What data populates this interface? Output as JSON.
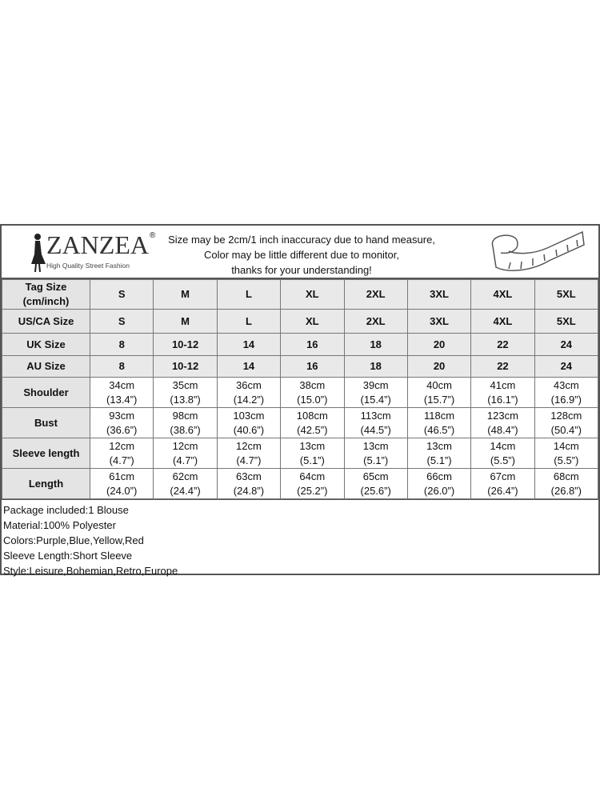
{
  "header": {
    "brand": "ZANZEA",
    "brand_mark": "®",
    "tagline": "High Quality Street Fashion",
    "notice": [
      "Size may be 2cm/1 inch inaccuracy due to hand measure,",
      "Color may be little different due to monitor,",
      "thanks for your understanding!"
    ]
  },
  "size_rows": [
    {
      "label": "Tag Size (cm/inch)",
      "values": [
        "S",
        "M",
        "L",
        "XL",
        "2XL",
        "3XL",
        "4XL",
        "5XL"
      ]
    },
    {
      "label": "US/CA Size",
      "values": [
        "S",
        "M",
        "L",
        "XL",
        "2XL",
        "3XL",
        "4XL",
        "5XL"
      ]
    },
    {
      "label": "UK Size",
      "values": [
        "8",
        "10-12",
        "14",
        "16",
        "18",
        "20",
        "22",
        "24"
      ]
    },
    {
      "label": "AU Size",
      "values": [
        "8",
        "10-12",
        "14",
        "16",
        "18",
        "20",
        "22",
        "24"
      ]
    }
  ],
  "measure_rows": [
    {
      "label": "Shoulder",
      "cm": [
        "34cm",
        "35cm",
        "36cm",
        "38cm",
        "39cm",
        "40cm",
        "41cm",
        "43cm"
      ],
      "inch": [
        "(13.4”)",
        "(13.8”)",
        "(14.2”)",
        "(15.0”)",
        "(15.4”)",
        "(15.7”)",
        "(16.1”)",
        "(16.9”)"
      ]
    },
    {
      "label": "Bust",
      "cm": [
        "93cm",
        "98cm",
        "103cm",
        "108cm",
        "113cm",
        "118cm",
        "123cm",
        "128cm"
      ],
      "inch": [
        "(36.6”)",
        "(38.6”)",
        "(40.6”)",
        "(42.5”)",
        "(44.5”)",
        "(46.5”)",
        "(48.4”)",
        "(50.4”)"
      ]
    },
    {
      "label": "Sleeve length",
      "cm": [
        "12cm",
        "12cm",
        "12cm",
        "13cm",
        "13cm",
        "13cm",
        "14cm",
        "14cm"
      ],
      "inch": [
        "(4.7”)",
        "(4.7”)",
        "(4.7”)",
        "(5.1”)",
        "(5.1”)",
        "(5.1”)",
        "(5.5”)",
        "(5.5”)"
      ]
    },
    {
      "label": "Length",
      "cm": [
        "61cm",
        "62cm",
        "63cm",
        "64cm",
        "65cm",
        "66cm",
        "67cm",
        "68cm"
      ],
      "inch": [
        "(24.0”)",
        "(24.4”)",
        "(24.8”)",
        "(25.2”)",
        "(25.6”)",
        "(26.0”)",
        "(26.4”)",
        "(26.8”)"
      ]
    }
  ],
  "footer": [
    "Package included:1 Blouse",
    "Material:100% Polyester",
    "Colors:Purple,Blue,Yellow,Red",
    "Sleeve Length:Short Sleeve",
    "Style:Leisure,Bohemian,Retro,Europe"
  ]
}
